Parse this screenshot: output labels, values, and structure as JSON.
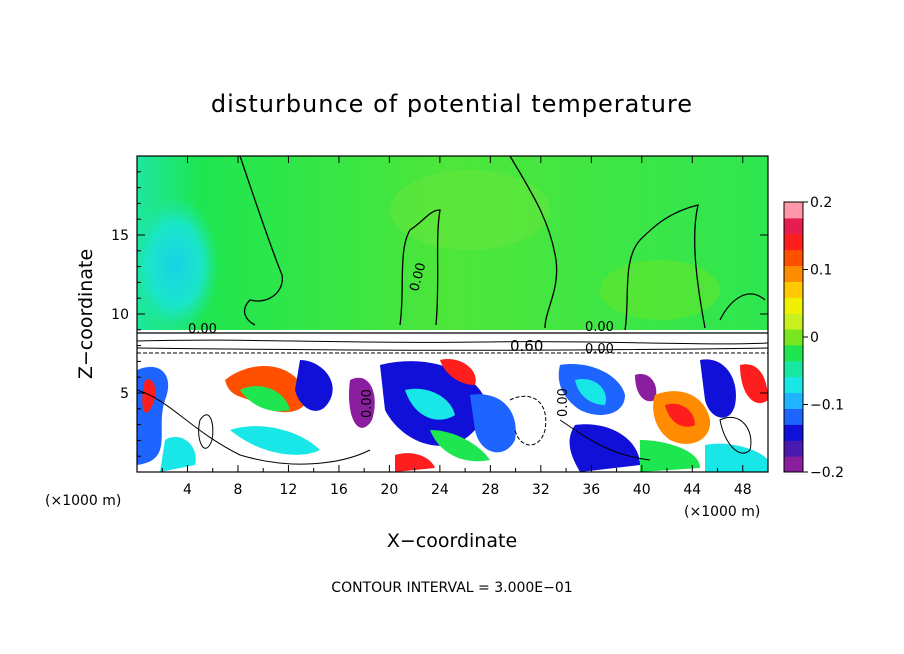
{
  "chart_data": {
    "type": "heatmap",
    "title": "disturbunce of potential temperature",
    "xlabel": "X−coordinate",
    "ylabel": "Z−coordinate",
    "x_unit_left": "(×1000 m)",
    "x_unit_right": "(×1000 m)",
    "xlim": [
      0,
      50
    ],
    "ylim": [
      0,
      20
    ],
    "x_ticks": [
      4,
      8,
      12,
      16,
      20,
      24,
      28,
      32,
      36,
      40,
      44,
      48
    ],
    "x_tick_labels": [
      "4",
      "8",
      "12",
      "16",
      "20",
      "24",
      "28",
      "32",
      "36",
      "40",
      "44",
      "48"
    ],
    "y_ticks": [
      5,
      10,
      15
    ],
    "y_tick_labels": [
      "5",
      "10",
      "15"
    ],
    "colorbar": {
      "range": [
        -0.2,
        0.2
      ],
      "ticks": [
        0.2,
        0.1,
        0,
        -0.1,
        -0.2
      ],
      "tick_labels": [
        "0.2",
        "0.1",
        "0",
        "−0.1",
        "−0.2"
      ],
      "colors": [
        "#8a1e9e",
        "#4a1ab0",
        "#1010d8",
        "#1e64ff",
        "#1eb4ff",
        "#19e6e6",
        "#19e6a0",
        "#1ee650",
        "#78e61e",
        "#c8f01e",
        "#f0f000",
        "#ffc800",
        "#ff8c00",
        "#ff5000",
        "#ff1e1e",
        "#e61e50",
        "#ff96aa"
      ]
    },
    "contour_labels": [
      "0.00",
      "0.00",
      "0.00",
      "0.60",
      "0.00",
      "0.00",
      "0.00"
    ],
    "contour_interval_text": "CONTOUR INTERVAL = 3.000E−01"
  }
}
